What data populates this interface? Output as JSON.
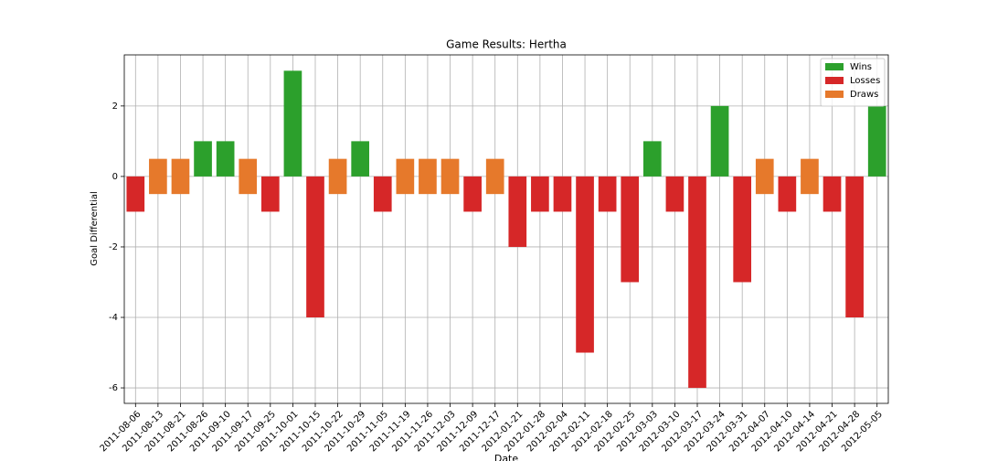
{
  "chart_data": {
    "type": "bar",
    "title": "Game Results: Hertha",
    "x_label": "Date",
    "y_label": "Goal Differential",
    "categories": [
      "2011-08-06",
      "2011-08-13",
      "2011-08-21",
      "2011-08-26",
      "2011-09-10",
      "2011-09-17",
      "2011-09-25",
      "2011-10-01",
      "2011-10-15",
      "2011-10-22",
      "2011-10-29",
      "2011-11-05",
      "2011-11-19",
      "2011-11-26",
      "2011-12-03",
      "2011-12-09",
      "2011-12-17",
      "2012-01-21",
      "2012-01-28",
      "2012-02-04",
      "2012-02-11",
      "2012-02-18",
      "2012-02-25",
      "2012-03-03",
      "2012-03-10",
      "2012-03-17",
      "2012-03-24",
      "2012-03-31",
      "2012-04-07",
      "2012-04-10",
      "2012-04-14",
      "2012-04-21",
      "2012-04-28",
      "2012-05-05"
    ],
    "series": [
      {
        "name": "Wins",
        "color": "#2ca02c",
        "values": [
          null,
          null,
          null,
          1,
          1,
          null,
          null,
          3,
          null,
          null,
          1,
          null,
          null,
          null,
          null,
          null,
          null,
          null,
          null,
          null,
          null,
          null,
          null,
          1,
          null,
          null,
          2,
          null,
          null,
          null,
          null,
          null,
          null,
          2
        ]
      },
      {
        "name": "Losses",
        "color": "#d62728",
        "values": [
          -1,
          null,
          null,
          null,
          null,
          null,
          -1,
          null,
          -4,
          null,
          null,
          -1,
          null,
          null,
          null,
          -1,
          null,
          -2,
          -1,
          -1,
          -5,
          -1,
          -3,
          null,
          -1,
          -6,
          null,
          -3,
          null,
          -1,
          null,
          -1,
          -4,
          null
        ]
      },
      {
        "name": "Draws",
        "color": "#e6792b",
        "values": [
          null,
          0,
          0,
          null,
          null,
          0,
          null,
          null,
          null,
          0,
          null,
          null,
          0,
          0,
          0,
          null,
          0,
          null,
          null,
          null,
          null,
          null,
          null,
          null,
          null,
          null,
          null,
          null,
          0,
          null,
          0,
          null,
          null,
          null
        ]
      }
    ],
    "ylim": [
      -6.44,
      3.45
    ],
    "yticks": [
      -6,
      -4,
      -2,
      0,
      2
    ],
    "grid": true,
    "legend": "upper right"
  }
}
